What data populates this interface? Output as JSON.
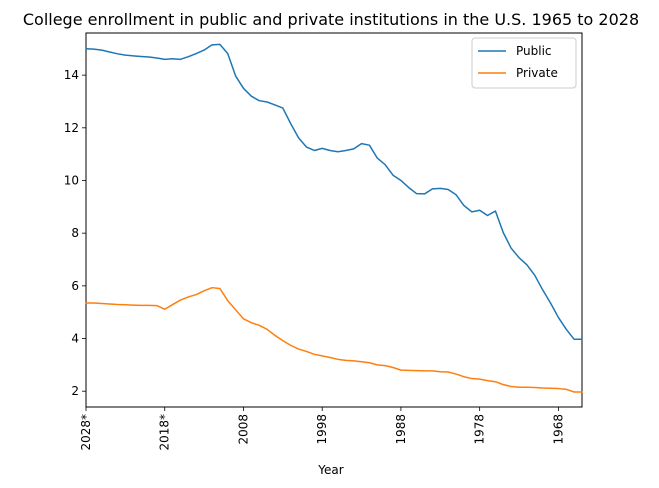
{
  "chart_data": {
    "type": "line",
    "title": "College enrollment in public and private institutions in the U.S. 1965 to 2028",
    "xlabel": "Year",
    "ylabel": "",
    "x": [
      2028,
      2027,
      2026,
      2025,
      2024,
      2023,
      2022,
      2021,
      2020,
      2019,
      2018,
      2017,
      2016,
      2015,
      2014,
      2013,
      2012,
      2011,
      2010,
      2009,
      2008,
      2007,
      2006,
      2005,
      2004,
      2003,
      2002,
      2001,
      2000,
      1999,
      1998,
      1997,
      1996,
      1995,
      1994,
      1993,
      1992,
      1991,
      1990,
      1989,
      1988,
      1987,
      1986,
      1985,
      1984,
      1983,
      1982,
      1981,
      1980,
      1979,
      1978,
      1977,
      1976,
      1975,
      1974,
      1973,
      1972,
      1971,
      1970,
      1969,
      1968,
      1967,
      1966,
      1965
    ],
    "xticks": [
      {
        "label": "2028*",
        "pos": 2028
      },
      {
        "label": "2018*",
        "pos": 2018
      },
      {
        "label": "2008",
        "pos": 2008
      },
      {
        "label": "1998",
        "pos": 1998
      },
      {
        "label": "1988",
        "pos": 1988
      },
      {
        "label": "1978",
        "pos": 1978
      },
      {
        "label": "1968",
        "pos": 1968
      }
    ],
    "yticks": [
      2,
      4,
      6,
      8,
      10,
      12,
      14
    ],
    "xlim": [
      2028.0,
      1965.0
    ],
    "ylim": [
      1.4,
      15.6
    ],
    "legend_position": "top-right",
    "series": [
      {
        "name": "Public",
        "color": "#1f77b4",
        "values": [
          15.0,
          14.99,
          14.95,
          14.88,
          14.81,
          14.76,
          14.73,
          14.71,
          14.69,
          14.65,
          14.6,
          14.62,
          14.6,
          14.7,
          14.82,
          14.95,
          15.15,
          15.17,
          14.82,
          13.97,
          13.5,
          13.2,
          13.03,
          12.98,
          12.87,
          12.75,
          12.16,
          11.62,
          11.27,
          11.14,
          11.22,
          11.14,
          11.09,
          11.14,
          11.2,
          11.4,
          11.34,
          10.85,
          10.6,
          10.2,
          10.0,
          9.73,
          9.5,
          9.49,
          9.68,
          9.7,
          9.66,
          9.46,
          9.05,
          8.81,
          8.87,
          8.67,
          8.84,
          8.02,
          7.43,
          7.07,
          6.8,
          6.4,
          5.85,
          5.35,
          4.8,
          4.35,
          3.97,
          3.97
        ]
      },
      {
        "name": "Private",
        "color": "#ff7f0e",
        "values": [
          5.35,
          5.35,
          5.33,
          5.31,
          5.29,
          5.28,
          5.27,
          5.26,
          5.26,
          5.25,
          5.11,
          5.29,
          5.46,
          5.58,
          5.67,
          5.81,
          5.93,
          5.9,
          5.44,
          5.09,
          4.75,
          4.6,
          4.5,
          4.35,
          4.12,
          3.92,
          3.74,
          3.6,
          3.51,
          3.4,
          3.34,
          3.28,
          3.21,
          3.17,
          3.15,
          3.12,
          3.08,
          3.0,
          2.97,
          2.9,
          2.8,
          2.79,
          2.78,
          2.77,
          2.77,
          2.74,
          2.73,
          2.65,
          2.55,
          2.48,
          2.46,
          2.4,
          2.36,
          2.25,
          2.18,
          2.15,
          2.15,
          2.14,
          2.12,
          2.11,
          2.1,
          2.07,
          1.97,
          1.97
        ]
      }
    ]
  }
}
